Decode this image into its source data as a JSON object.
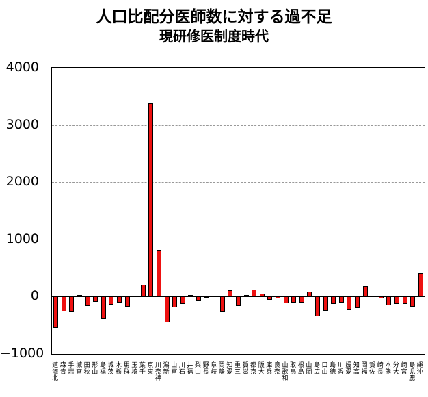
{
  "chart_data": {
    "type": "bar",
    "title": "人口比配分医師数に対する過不足",
    "subtitle": "現研修医制度時代",
    "xlabel": "",
    "ylabel": "",
    "ylim": [
      -1000,
      4000
    ],
    "yticks": [
      4000,
      3000,
      2000,
      1000,
      0,
      -1000
    ],
    "grid": "dashed horizontal at 1000/2000/3000, solid zero line, black frame",
    "legend": "none",
    "bar_color": "#ee1111",
    "bar_border_color": "#000000",
    "gridline_color": "#999999",
    "categories": [
      "北海道",
      "青森",
      "岩手",
      "宮城",
      "秋田",
      "山形",
      "福島",
      "茨城",
      "栃木",
      "群馬",
      "埼玉",
      "千葉",
      "東京",
      "神奈川",
      "新潟",
      "富山",
      "石川",
      "福井",
      "山梨",
      "長野",
      "岐阜",
      "静岡",
      "愛知",
      "三重",
      "滋賀",
      "京都",
      "大阪",
      "兵庫",
      "奈良",
      "和歌山",
      "鳥取",
      "島根",
      "岡山",
      "広島",
      "山口",
      "徳島",
      "香川",
      "愛媛",
      "高知",
      "福岡",
      "佐賀",
      "長崎",
      "熊本",
      "大分",
      "宮崎",
      "鹿児島",
      "沖縄"
    ],
    "values": [
      -540,
      -260,
      -270,
      30,
      -160,
      -95,
      -395,
      -140,
      -105,
      -180,
      0,
      210,
      3380,
      820,
      -445,
      -185,
      -125,
      30,
      -80,
      -15,
      20,
      -275,
      115,
      -160,
      30,
      130,
      55,
      -60,
      -35,
      -120,
      -105,
      -100,
      85,
      -345,
      -245,
      -125,
      -105,
      -240,
      -200,
      180,
      0,
      -30,
      -150,
      -130,
      -130,
      -170,
      410
    ]
  }
}
